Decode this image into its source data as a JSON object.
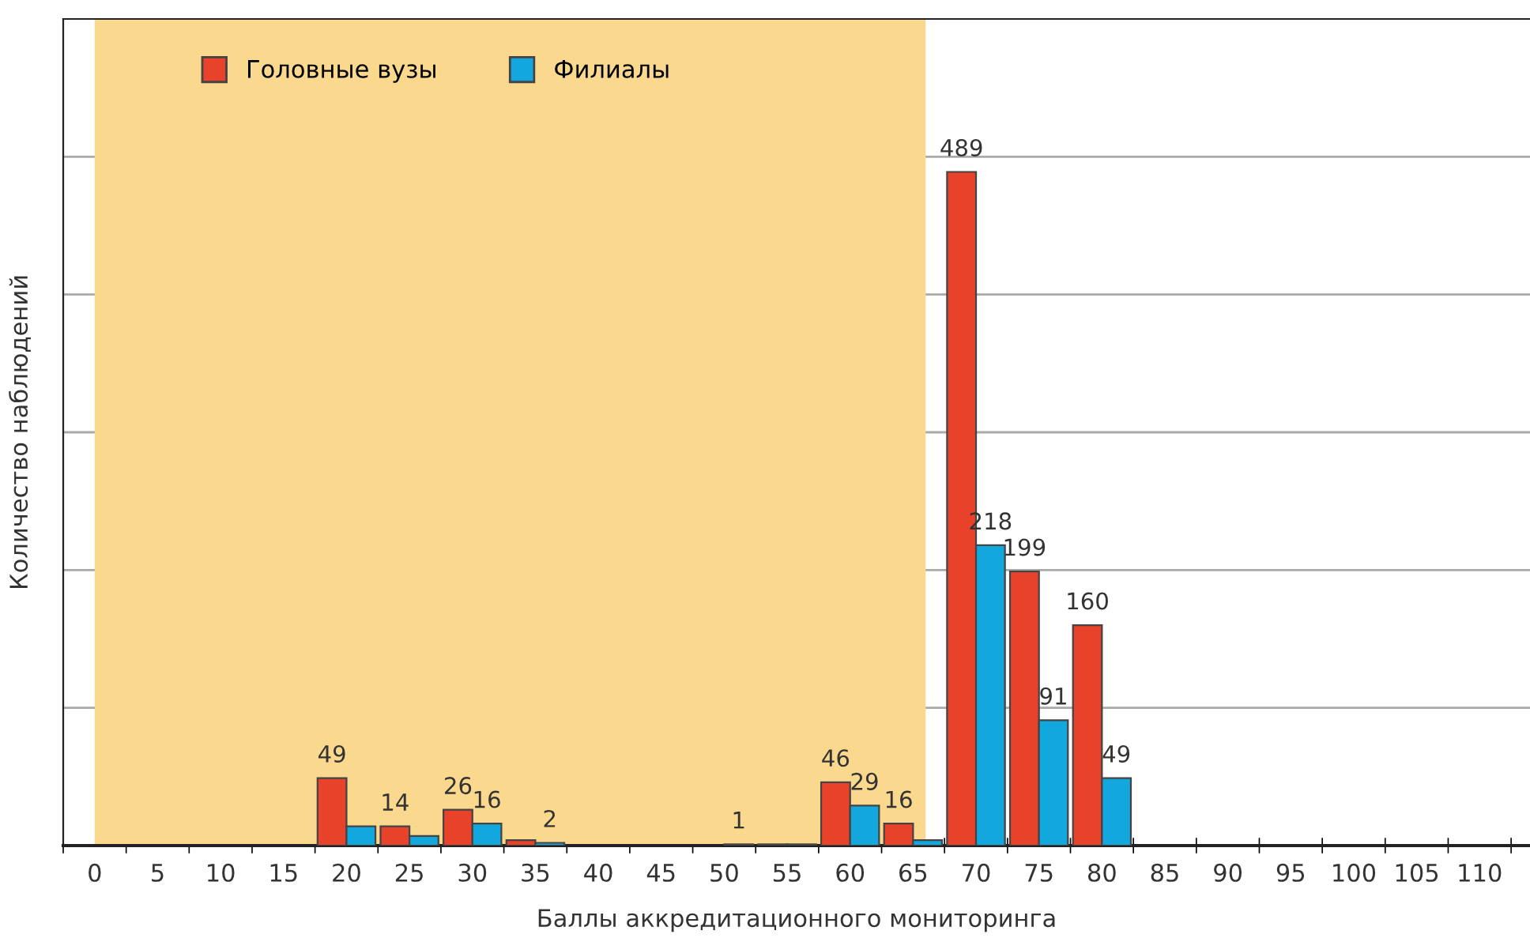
{
  "chart_data": {
    "type": "bar",
    "xlabel": "Баллы аккредитационного мониторинга",
    "ylabel": "Количество наблюдений",
    "categories": [
      "0",
      "5",
      "10",
      "15",
      "20",
      "25",
      "30",
      "35",
      "40",
      "45",
      "50",
      "55",
      "60",
      "65",
      "70",
      "75",
      "80",
      "85",
      "90",
      "95",
      "100",
      "105",
      "110"
    ],
    "series": [
      {
        "name": "Головные вузы",
        "color": "#e8432a",
        "values": [
          0,
          0,
          0,
          0,
          49,
          14,
          26,
          4,
          0,
          0,
          0,
          1,
          46,
          16,
          489,
          199,
          160,
          0,
          0,
          0,
          0,
          0,
          0
        ],
        "value_labels": [
          null,
          null,
          null,
          null,
          "49",
          "14",
          "26",
          null,
          null,
          null,
          null,
          null,
          "46",
          "16",
          "489",
          "199",
          "160",
          null,
          null,
          null,
          null,
          null,
          null
        ]
      },
      {
        "name": "Филиалы",
        "color": "#12a7dd",
        "values": [
          0,
          0,
          0,
          0,
          14,
          7,
          16,
          2,
          0,
          0,
          1,
          1,
          29,
          4,
          218,
          91,
          49,
          0,
          0,
          0,
          0,
          0,
          0
        ],
        "value_labels": [
          null,
          null,
          null,
          null,
          null,
          null,
          "16",
          "2",
          null,
          null,
          "1",
          null,
          "29",
          null,
          "218",
          "91",
          "49",
          null,
          null,
          null,
          null,
          null,
          null
        ]
      }
    ],
    "ylim": [
      0,
      600
    ],
    "yticks": [
      {
        "value": 100,
        "label": null
      },
      {
        "value": 200,
        "label": null
      },
      {
        "value": 300,
        "label": null
      },
      {
        "value": 400,
        "label": null
      },
      {
        "value": 500,
        "label": null
      }
    ],
    "tick_labels": "x",
    "grid": "y",
    "legend": "top left",
    "bands": [
      {
        "axis": "x",
        "from": "0",
        "to": "65",
        "color": "#fad98f"
      }
    ]
  }
}
